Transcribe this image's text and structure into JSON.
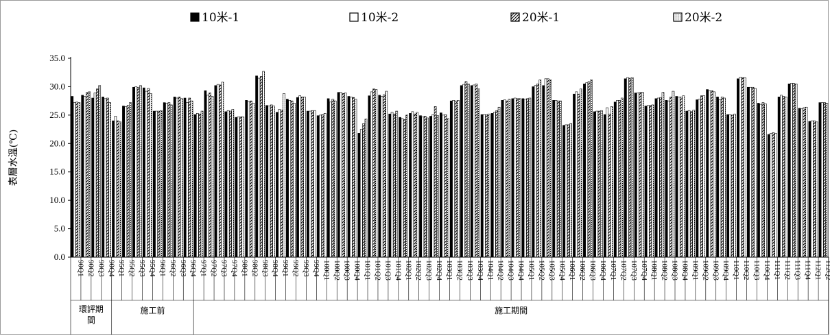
{
  "chart_data": {
    "type": "bar",
    "ylabel": "表層水溫(℃)",
    "ylim": [
      0,
      35
    ],
    "yticks": [
      "0.0",
      "5.0",
      "10.0",
      "15.0",
      "20.0",
      "25.0",
      "30.0",
      "35.0"
    ],
    "legend": [
      "10米-1",
      "10米-2",
      "20米-1",
      "20米-2"
    ],
    "legend_position": "top",
    "categories": [
      "90Q1",
      "90Q2",
      "90Q3",
      "90Q4",
      "95Q1",
      "95Q2",
      "95Q3",
      "95Q4",
      "96Q1",
      "96Q2",
      "96Q3",
      "96Q4",
      "97Q1",
      "97Q2",
      "97Q3",
      "97Q4",
      "98Q1",
      "98Q2",
      "98Q3",
      "98Q4",
      "99Q1",
      "99Q2",
      "99Q3",
      "99Q4",
      "100Q1",
      "100Q2",
      "100Q3",
      "100Q4",
      "101Q1",
      "101Q2",
      "101Q3",
      "101Q4",
      "102Q1",
      "102Q2",
      "102Q3",
      "102Q4",
      "103Q1",
      "103Q2",
      "103Q3",
      "103Q4",
      "104Q1",
      "104Q2",
      "104Q3",
      "104Q4",
      "105Q1",
      "105Q2",
      "105Q3",
      "105Q4",
      "106Q1",
      "106Q2",
      "106Q3",
      "106Q4",
      "107Q1",
      "107Q2",
      "107Q3",
      "107Q4",
      "108Q1",
      "108Q2",
      "108Q3",
      "108Q4",
      "109Q1",
      "109Q2",
      "109Q3",
      "109Q4",
      "110Q1",
      "110Q2",
      "110Q3",
      "110Q4",
      "111Q1",
      "111Q2",
      "111Q3",
      "111Q4",
      "112Q1",
      "112Q2"
    ],
    "series": [
      {
        "name": "10米-1",
        "values": [
          28.3,
          28.5,
          28.0,
          28.2,
          24.0,
          26.6,
          29.9,
          29.8,
          25.7,
          27.2,
          28.2,
          28.0,
          25.1,
          29.3,
          30.2,
          25.6,
          24.6,
          27.6,
          31.9,
          26.7,
          25.5,
          27.8,
          28.1,
          25.7,
          24.9,
          27.9,
          29.0,
          28.3,
          21.8,
          28.4,
          28.5,
          25.2,
          24.6,
          25.3,
          24.9,
          24.8,
          25.4,
          27.5,
          30.2,
          30.2,
          25.1,
          25.3,
          27.6,
          27.9,
          27.9,
          30.0,
          30.2,
          27.6,
          23.2,
          28.7,
          30.5,
          25.6,
          25.1,
          27.3,
          31.4,
          28.9,
          26.6,
          27.9,
          27.6,
          28.3,
          25.7,
          27.7,
          29.5,
          28.2,
          25.1,
          31.4,
          29.9,
          27.1,
          21.6,
          28.2,
          30.5,
          26.2,
          23.9,
          27.2
        ]
      },
      {
        "name": "10米-2",
        "values": [
          27.2,
          28.3,
          28.9,
          27.9,
          24.8,
          26.5,
          30.0,
          29.2,
          25.7,
          27.1,
          28.0,
          27.2,
          25.3,
          28.5,
          30.4,
          25.8,
          24.7,
          27.4,
          31.5,
          26.6,
          26.0,
          27.6,
          28.4,
          25.7,
          25.0,
          27.3,
          29.0,
          28.2,
          22.5,
          29.1,
          28.3,
          25.5,
          24.4,
          25.6,
          24.7,
          25.1,
          25.0,
          27.6,
          30.4,
          30.3,
          25.1,
          25.5,
          27.7,
          28.0,
          27.8,
          30.2,
          31.4,
          27.6,
          23.3,
          29.1,
          30.7,
          25.7,
          26.3,
          27.6,
          31.6,
          28.9,
          26.7,
          28.0,
          27.5,
          28.2,
          25.8,
          27.8,
          29.3,
          27.7,
          25.1,
          31.7,
          29.9,
          26.9,
          21.8,
          28.5,
          30.6,
          26.1,
          24.0,
          27.2
        ]
      },
      {
        "name": "20米-1",
        "values": [
          27.3,
          29.0,
          29.6,
          28.0,
          24.0,
          26.7,
          29.9,
          29.7,
          25.7,
          27.2,
          28.2,
          28.0,
          25.2,
          28.9,
          30.3,
          25.7,
          24.7,
          27.5,
          31.8,
          26.8,
          25.9,
          27.5,
          28.2,
          25.8,
          25.1,
          27.8,
          28.8,
          28.1,
          23.5,
          29.6,
          28.6,
          25.2,
          24.2,
          25.2,
          24.8,
          26.5,
          25.1,
          27.5,
          30.9,
          30.5,
          25.1,
          25.8,
          27.5,
          27.9,
          27.9,
          30.5,
          31.4,
          27.5,
          23.3,
          28.7,
          30.9,
          25.7,
          25.2,
          27.6,
          31.5,
          29.0,
          26.7,
          28.1,
          28.2,
          28.2,
          25.6,
          28.4,
          29.3,
          28.2,
          25.0,
          31.6,
          29.9,
          27.2,
          21.9,
          28.3,
          30.6,
          26.3,
          24.0,
          27.2
        ]
      },
      {
        "name": "20米-2",
        "values": [
          27.2,
          29.1,
          30.2,
          27.2,
          23.8,
          27.2,
          30.2,
          28.8,
          25.8,
          26.8,
          27.9,
          27.5,
          25.7,
          28.3,
          30.8,
          26.0,
          24.7,
          27.1,
          32.7,
          26.6,
          28.8,
          27.1,
          28.2,
          25.8,
          25.3,
          27.5,
          28.9,
          27.8,
          24.3,
          29.5,
          29.2,
          25.7,
          25.0,
          25.5,
          24.5,
          24.9,
          24.4,
          27.6,
          30.5,
          29.6,
          25.2,
          26.4,
          27.8,
          27.9,
          28.0,
          31.2,
          31.2,
          27.5,
          23.5,
          29.6,
          31.2,
          25.8,
          26.5,
          28.0,
          31.6,
          29.0,
          26.8,
          29.0,
          29.2,
          28.4,
          25.9,
          28.4,
          29.1,
          28.0,
          25.2,
          31.6,
          29.7,
          27.0,
          21.8,
          28.2,
          30.5,
          26.4,
          23.8,
          27.1
        ]
      }
    ],
    "periods": [
      {
        "label": "環評期間",
        "start": 0,
        "end": 4
      },
      {
        "label": "施工前",
        "start": 4,
        "end": 12
      },
      {
        "label": "施工期間",
        "start": 12,
        "end": 74
      }
    ]
  }
}
